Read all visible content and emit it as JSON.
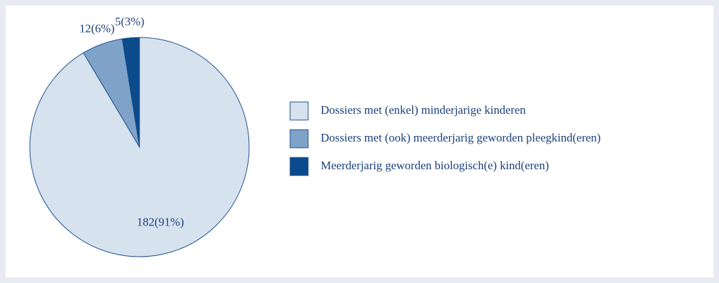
{
  "chart_data": {
    "type": "pie",
    "categories": [
      "Dossiers met (enkel) minderjarige kinderen",
      "Dossiers met (ook) meerderjarig geworden pleegkind(eren)",
      "Meerderjarig geworden biologisch(e) kind(eren)"
    ],
    "values": [
      182,
      12,
      5
    ],
    "value_labels": [
      "182(91%)",
      "12(6%)",
      "5(3%)"
    ],
    "colors": [
      "#d7e2ef",
      "#7fa3c8",
      "#0b4a8b"
    ]
  }
}
